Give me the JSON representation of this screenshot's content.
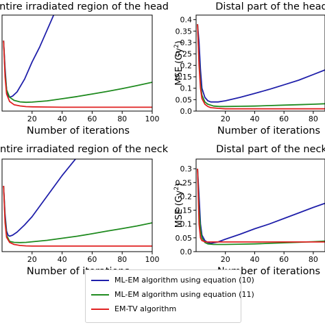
{
  "chart_data": {
    "type": "line",
    "xlabel": "Number of iterations",
    "series_colors": [
      "#1f1faa",
      "#1e8a1e",
      "#e02020"
    ],
    "legend": {
      "placement": "bottom-center",
      "entries": [
        "ML-EM algorithm using equation (10)",
        "ML-EM algorithm using equation (11)",
        "EM-TV algorithm"
      ]
    },
    "panels": [
      {
        "title": "Entire irradiated region of the head",
        "xlabel": "Number of iterations",
        "ylabel": "",
        "xlim": [
          0,
          100
        ],
        "ylim": [
          0,
          0.45
        ],
        "xticks": [
          20,
          40,
          60,
          80,
          100
        ],
        "yticks": [],
        "grid": false,
        "series": [
          {
            "x": [
              1,
              2,
              3,
              4,
              5,
              7,
              10,
              15,
              20,
              25,
              30,
              35
            ],
            "y": [
              0.33,
              0.2,
              0.1,
              0.07,
              0.065,
              0.07,
              0.09,
              0.15,
              0.23,
              0.3,
              0.38,
              0.46
            ]
          },
          {
            "x": [
              1,
              2,
              3,
              5,
              8,
              12,
              16,
              20,
              30,
              40,
              50,
              60,
              70,
              80,
              90,
              100
            ],
            "y": [
              0.33,
              0.18,
              0.1,
              0.065,
              0.05,
              0.043,
              0.041,
              0.042,
              0.048,
              0.058,
              0.068,
              0.08,
              0.092,
              0.105,
              0.12,
              0.135
            ]
          },
          {
            "x": [
              1,
              2,
              3,
              5,
              8,
              12,
              16,
              20,
              30,
              40,
              60,
              80,
              100
            ],
            "y": [
              0.33,
              0.16,
              0.08,
              0.045,
              0.03,
              0.024,
              0.021,
              0.02,
              0.019,
              0.018,
              0.018,
              0.018,
              0.018
            ]
          }
        ]
      },
      {
        "title": "Distal part of the head",
        "xlabel": "Number of iterations",
        "ylabel": "MSE (Gy²)",
        "xlim": [
          0,
          88
        ],
        "ylim": [
          0,
          0.42
        ],
        "xticks": [
          20,
          40,
          60,
          80
        ],
        "yticks": [
          0.0,
          0.05,
          0.1,
          0.15,
          0.2,
          0.25,
          0.3,
          0.35,
          0.4
        ],
        "grid": false,
        "series": [
          {
            "x": [
              1,
              2,
              3,
              4,
              6,
              8,
              10,
              15,
              20,
              30,
              40,
              50,
              60,
              70,
              80,
              88
            ],
            "y": [
              0.38,
              0.3,
              0.18,
              0.1,
              0.06,
              0.045,
              0.04,
              0.04,
              0.045,
              0.06,
              0.077,
              0.095,
              0.115,
              0.135,
              0.16,
              0.18
            ]
          },
          {
            "x": [
              1,
              2,
              3,
              4,
              6,
              8,
              12,
              16,
              20,
              30,
              40,
              50,
              60,
              70,
              80,
              88
            ],
            "y": [
              0.38,
              0.22,
              0.12,
              0.07,
              0.04,
              0.03,
              0.022,
              0.02,
              0.02,
              0.021,
              0.022,
              0.024,
              0.026,
              0.028,
              0.03,
              0.032
            ]
          },
          {
            "x": [
              1,
              2,
              3,
              4,
              6,
              8,
              10,
              15,
              20,
              30,
              40,
              60,
              88
            ],
            "y": [
              0.38,
              0.2,
              0.1,
              0.055,
              0.03,
              0.02,
              0.015,
              0.012,
              0.01,
              0.01,
              0.01,
              0.01,
              0.01
            ]
          }
        ]
      },
      {
        "title": "Entire irradiated region of the neck",
        "xlabel": "Number of iterations",
        "ylabel": "",
        "xlim": [
          0,
          100
        ],
        "ylim": [
          0,
          0.45
        ],
        "xticks": [
          20,
          40,
          60,
          80,
          100
        ],
        "yticks": [],
        "grid": false,
        "series": [
          {
            "x": [
              1,
              2,
              3,
              4,
              5,
              7,
              10,
              15,
              20,
              30,
              40,
              50
            ],
            "y": [
              0.32,
              0.18,
              0.1,
              0.08,
              0.075,
              0.08,
              0.095,
              0.13,
              0.17,
              0.27,
              0.37,
              0.46
            ]
          },
          {
            "x": [
              1,
              2,
              3,
              5,
              8,
              12,
              16,
              20,
              30,
              40,
              50,
              60,
              70,
              80,
              90,
              100
            ],
            "y": [
              0.32,
              0.16,
              0.08,
              0.05,
              0.045,
              0.044,
              0.045,
              0.048,
              0.055,
              0.065,
              0.075,
              0.087,
              0.1,
              0.112,
              0.125,
              0.14
            ]
          },
          {
            "x": [
              1,
              2,
              3,
              5,
              8,
              12,
              16,
              20,
              30,
              40,
              60,
              80,
              100
            ],
            "y": [
              0.32,
              0.14,
              0.07,
              0.045,
              0.035,
              0.03,
              0.028,
              0.027,
              0.027,
              0.027,
              0.027,
              0.027,
              0.027
            ]
          }
        ]
      },
      {
        "title": "Distal part of the neck",
        "xlabel": "Number of iterations",
        "ylabel": "MSE (Gy²)",
        "xlim": [
          0,
          88
        ],
        "ylim": [
          0,
          0.335
        ],
        "xticks": [
          20,
          40,
          60,
          80
        ],
        "yticks": [
          0.0,
          0.05,
          0.1,
          0.15,
          0.2,
          0.25,
          0.3
        ],
        "grid": false,
        "series": [
          {
            "x": [
              1,
              2,
              3,
              4,
              6,
              8,
              10,
              15,
              20,
              30,
              40,
              50,
              60,
              70,
              80,
              88
            ],
            "y": [
              0.3,
              0.2,
              0.1,
              0.06,
              0.04,
              0.033,
              0.03,
              0.035,
              0.045,
              0.063,
              0.083,
              0.1,
              0.12,
              0.14,
              0.16,
              0.175
            ]
          },
          {
            "x": [
              1,
              2,
              3,
              4,
              6,
              8,
              12,
              16,
              20,
              30,
              40,
              50,
              60,
              70,
              80,
              88
            ],
            "y": [
              0.3,
              0.15,
              0.08,
              0.05,
              0.033,
              0.028,
              0.026,
              0.026,
              0.026,
              0.027,
              0.028,
              0.03,
              0.032,
              0.034,
              0.036,
              0.038
            ]
          },
          {
            "x": [
              1,
              2,
              3,
              4,
              6,
              8,
              10,
              15,
              20,
              30,
              40,
              60,
              88
            ],
            "y": [
              0.3,
              0.1,
              0.05,
              0.04,
              0.036,
              0.035,
              0.035,
              0.035,
              0.035,
              0.035,
              0.035,
              0.035,
              0.035
            ]
          }
        ]
      }
    ]
  }
}
